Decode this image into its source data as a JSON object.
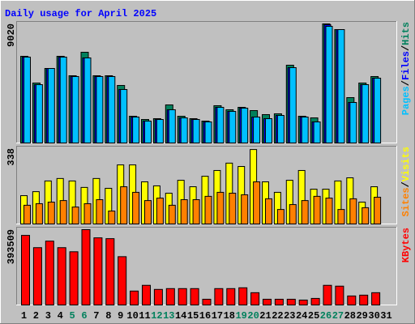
{
  "chart_data": {
    "type": "bar",
    "title": "Daily usage for April 2025",
    "title_color": "#0000ff",
    "categories": [
      "1",
      "2",
      "3",
      "4",
      "5",
      "6",
      "7",
      "8",
      "9",
      "10",
      "11",
      "12",
      "13",
      "14",
      "15",
      "16",
      "17",
      "18",
      "19",
      "20",
      "21",
      "22",
      "23",
      "24",
      "25",
      "26",
      "27",
      "28",
      "29",
      "30",
      "31"
    ],
    "highlight_categories": [
      "5",
      "6",
      "12",
      "13",
      "19",
      "20",
      "26",
      "27"
    ],
    "highlight_color": "#00805c",
    "legend_separator": "/",
    "panels": [
      {
        "ylim": [
          0,
          9020
        ],
        "yticks": [
          9020
        ],
        "series": [
          {
            "name": "Hits",
            "color": "#00805c",
            "values": [
              6566,
              4541,
              5645,
              6566,
              5093,
              6872,
              5093,
              5093,
              4357,
              2025,
              1779,
              1841,
              2884,
              2025,
              1841,
              1657,
              2823,
              2516,
              2700,
              2454,
              2148,
              2209,
              5891,
              2025,
              1902,
              9020,
              8590,
              3436,
              4541,
              5032,
              null
            ]
          },
          {
            "name": "Files",
            "color": "#0000ff",
            "values": [
              6504,
              4418,
              5645,
              6504,
              5032,
              6443,
              5032,
              5032,
              4050,
              1964,
              1657,
              1779,
              2516,
              1902,
              1779,
              1595,
              2700,
              2393,
              2638,
              1964,
              1841,
              2086,
              5706,
              1964,
              1595,
              8959,
              8590,
              3068,
              4418,
              4909,
              null
            ]
          },
          {
            "name": "Pages",
            "color": "#00c0ff",
            "values": [
              6504,
              4418,
              5645,
              6504,
              5032,
              6443,
              5032,
              5032,
              4050,
              1964,
              1657,
              1779,
              2516,
              1902,
              1779,
              1595,
              2700,
              2393,
              2638,
              1964,
              1841,
              2086,
              5706,
              1964,
              1595,
              8836,
              8590,
              3068,
              4418,
              4909,
              null
            ]
          }
        ]
      },
      {
        "ylim": [
          0,
          338
        ],
        "yticks": [
          338
        ],
        "series": [
          {
            "name": "Visits",
            "color": "#ffff00",
            "values": [
              127,
              145,
              193,
              204,
              193,
              164,
              204,
              160,
              265,
              265,
              189,
              171,
              138,
              196,
              167,
              214,
              240,
              273,
              258,
              334,
              189,
              142,
              196,
              240,
              156,
              156,
              193,
              207,
              98,
              167,
              null
            ]
          },
          {
            "name": "Sites",
            "color": "#ff8000",
            "values": [
              84,
              91,
              98,
              105,
              76,
              91,
              109,
              58,
              167,
              142,
              105,
              116,
              84,
              109,
              109,
              124,
              142,
              138,
              131,
              189,
              113,
              65,
              87,
              105,
              124,
              116,
              65,
              113,
              73,
              120,
              null
            ]
          }
        ]
      },
      {
        "ylim": [
          0,
          393509
        ],
        "yticks": [
          393509
        ],
        "series": [
          {
            "name": "KBytes",
            "color": "#ff0000",
            "values": [
              363545,
              299390,
              333606,
              299390,
              278005,
              393509,
              350714,
              346437,
              252343,
              72709,
              102648,
              81263,
              85540,
              85540,
              85540,
              29939,
              85540,
              85540,
              89817,
              64155,
              29939,
              29939,
              29939,
              25662,
              34216,
              102648,
              98371,
              47047,
              51324,
              64155,
              null
            ]
          }
        ]
      }
    ]
  }
}
